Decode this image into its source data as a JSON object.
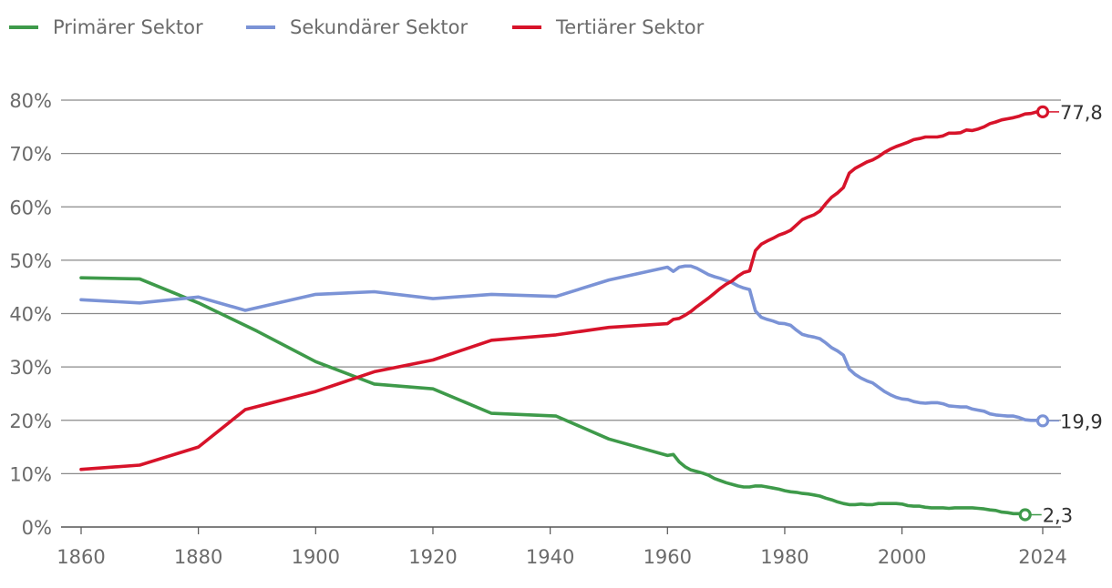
{
  "chart_data": {
    "type": "line",
    "title": "",
    "xlabel": "",
    "ylabel": "",
    "xlim": [
      1860,
      2024
    ],
    "ylim": [
      0,
      80
    ],
    "x_ticks": [
      "1860",
      "1880",
      "1900",
      "1920",
      "1940",
      "1960",
      "1980",
      "2000",
      "2024"
    ],
    "y_ticks": [
      "0%",
      "10%",
      "20%",
      "30%",
      "40%",
      "50%",
      "60%",
      "70%",
      "80%"
    ],
    "grid": "horizontal",
    "legend_position": "top-left",
    "series": [
      {
        "name": "Primärer Sektor",
        "color": "#3e9a4a",
        "end_label": "2,3",
        "points": [
          [
            1860,
            46.7
          ],
          [
            1870,
            46.5
          ],
          [
            1880,
            42
          ],
          [
            1890,
            36.7
          ],
          [
            1900,
            31
          ],
          [
            1910,
            26.8
          ],
          [
            1920,
            25.9
          ],
          [
            1930,
            21.3
          ],
          [
            1941,
            20.8
          ],
          [
            1950,
            16.5
          ],
          [
            1960,
            13.4
          ],
          [
            1961,
            13.6
          ],
          [
            1962,
            12.2
          ],
          [
            1963,
            11.3
          ],
          [
            1964,
            10.7
          ],
          [
            1965,
            10.4
          ],
          [
            1966,
            10.1
          ],
          [
            1967,
            9.7
          ],
          [
            1968,
            9.1
          ],
          [
            1969,
            8.7
          ],
          [
            1970,
            8.3
          ],
          [
            1971,
            8
          ],
          [
            1972,
            7.7
          ],
          [
            1973,
            7.5
          ],
          [
            1974,
            7.5
          ],
          [
            1975,
            7.7
          ],
          [
            1976,
            7.7
          ],
          [
            1977,
            7.5
          ],
          [
            1978,
            7.3
          ],
          [
            1979,
            7.1
          ],
          [
            1980,
            6.8
          ],
          [
            1981,
            6.6
          ],
          [
            1982,
            6.5
          ],
          [
            1983,
            6.3
          ],
          [
            1984,
            6.2
          ],
          [
            1985,
            6
          ],
          [
            1986,
            5.8
          ],
          [
            1987,
            5.4
          ],
          [
            1988,
            5.1
          ],
          [
            1989,
            4.7
          ],
          [
            1990,
            4.4
          ],
          [
            1991,
            4.2
          ],
          [
            1992,
            4.2
          ],
          [
            1993,
            4.3
          ],
          [
            1994,
            4.2
          ],
          [
            1995,
            4.2
          ],
          [
            1996,
            4.4
          ],
          [
            1997,
            4.4
          ],
          [
            1998,
            4.4
          ],
          [
            1999,
            4.4
          ],
          [
            2000,
            4.3
          ],
          [
            2001,
            4
          ],
          [
            2002,
            3.9
          ],
          [
            2003,
            3.9
          ],
          [
            2004,
            3.7
          ],
          [
            2005,
            3.6
          ],
          [
            2006,
            3.6
          ],
          [
            2007,
            3.6
          ],
          [
            2008,
            3.5
          ],
          [
            2009,
            3.6
          ],
          [
            2010,
            3.6
          ],
          [
            2011,
            3.6
          ],
          [
            2012,
            3.6
          ],
          [
            2013,
            3.5
          ],
          [
            2014,
            3.4
          ],
          [
            2015,
            3.2
          ],
          [
            2016,
            3.1
          ],
          [
            2017,
            2.8
          ],
          [
            2018,
            2.7
          ],
          [
            2019,
            2.5
          ],
          [
            2020,
            2.5
          ],
          [
            2021,
            2.3
          ]
        ]
      },
      {
        "name": "Sekundärer Sektor",
        "color": "#7b93d6",
        "end_label": "19,9",
        "points": [
          [
            1860,
            42.6
          ],
          [
            1870,
            42
          ],
          [
            1880,
            43.1
          ],
          [
            1888,
            40.6
          ],
          [
            1900,
            43.6
          ],
          [
            1910,
            44.1
          ],
          [
            1920,
            42.8
          ],
          [
            1930,
            43.6
          ],
          [
            1941,
            43.2
          ],
          [
            1950,
            46.3
          ],
          [
            1960,
            48.7
          ],
          [
            1961,
            47.9
          ],
          [
            1962,
            48.7
          ],
          [
            1963,
            48.9
          ],
          [
            1964,
            48.9
          ],
          [
            1965,
            48.5
          ],
          [
            1966,
            47.9
          ],
          [
            1967,
            47.3
          ],
          [
            1968,
            46.9
          ],
          [
            1969,
            46.6
          ],
          [
            1970,
            46.2
          ],
          [
            1971,
            45.8
          ],
          [
            1972,
            45.2
          ],
          [
            1973,
            44.8
          ],
          [
            1974,
            44.5
          ],
          [
            1975,
            40.5
          ],
          [
            1976,
            39.3
          ],
          [
            1977,
            38.9
          ],
          [
            1978,
            38.6
          ],
          [
            1979,
            38.2
          ],
          [
            1980,
            38.1
          ],
          [
            1981,
            37.8
          ],
          [
            1982,
            36.9
          ],
          [
            1983,
            36.1
          ],
          [
            1984,
            35.8
          ],
          [
            1985,
            35.6
          ],
          [
            1986,
            35.3
          ],
          [
            1987,
            34.5
          ],
          [
            1988,
            33.6
          ],
          [
            1989,
            33
          ],
          [
            1990,
            32.2
          ],
          [
            1991,
            29.6
          ],
          [
            1992,
            28.6
          ],
          [
            1993,
            27.9
          ],
          [
            1994,
            27.4
          ],
          [
            1995,
            27
          ],
          [
            1996,
            26.2
          ],
          [
            1997,
            25.4
          ],
          [
            1998,
            24.8
          ],
          [
            1999,
            24.3
          ],
          [
            2000,
            24
          ],
          [
            2001,
            23.9
          ],
          [
            2002,
            23.5
          ],
          [
            2003,
            23.3
          ],
          [
            2004,
            23.2
          ],
          [
            2005,
            23.3
          ],
          [
            2006,
            23.3
          ],
          [
            2007,
            23.1
          ],
          [
            2008,
            22.7
          ],
          [
            2009,
            22.6
          ],
          [
            2010,
            22.5
          ],
          [
            2011,
            22.5
          ],
          [
            2012,
            22.1
          ],
          [
            2013,
            21.9
          ],
          [
            2014,
            21.7
          ],
          [
            2015,
            21.2
          ],
          [
            2016,
            21
          ],
          [
            2017,
            20.9
          ],
          [
            2018,
            20.8
          ],
          [
            2019,
            20.8
          ],
          [
            2020,
            20.5
          ],
          [
            2021,
            20.1
          ],
          [
            2022,
            20
          ],
          [
            2023,
            20
          ],
          [
            2024,
            19.9
          ]
        ]
      },
      {
        "name": "Tertiärer Sektor",
        "color": "#d7132a",
        "end_label": "77,8",
        "points": [
          [
            1860,
            10.8
          ],
          [
            1870,
            11.6
          ],
          [
            1880,
            15
          ],
          [
            1888,
            22
          ],
          [
            1900,
            25.4
          ],
          [
            1910,
            29.1
          ],
          [
            1920,
            31.3
          ],
          [
            1930,
            35
          ],
          [
            1941,
            36
          ],
          [
            1950,
            37.4
          ],
          [
            1960,
            38.1
          ],
          [
            1961,
            38.9
          ],
          [
            1962,
            39.1
          ],
          [
            1963,
            39.7
          ],
          [
            1964,
            40.4
          ],
          [
            1965,
            41.3
          ],
          [
            1966,
            42.1
          ],
          [
            1967,
            42.9
          ],
          [
            1968,
            43.8
          ],
          [
            1969,
            44.7
          ],
          [
            1970,
            45.5
          ],
          [
            1971,
            46.1
          ],
          [
            1972,
            47
          ],
          [
            1973,
            47.7
          ],
          [
            1974,
            48
          ],
          [
            1975,
            51.8
          ],
          [
            1976,
            53
          ],
          [
            1977,
            53.6
          ],
          [
            1978,
            54.1
          ],
          [
            1979,
            54.7
          ],
          [
            1980,
            55.1
          ],
          [
            1981,
            55.6
          ],
          [
            1982,
            56.6
          ],
          [
            1983,
            57.6
          ],
          [
            1984,
            58.1
          ],
          [
            1985,
            58.5
          ],
          [
            1986,
            59.2
          ],
          [
            1987,
            60.6
          ],
          [
            1988,
            61.8
          ],
          [
            1989,
            62.6
          ],
          [
            1990,
            63.6
          ],
          [
            1991,
            66.3
          ],
          [
            1992,
            67.2
          ],
          [
            1993,
            67.8
          ],
          [
            1994,
            68.4
          ],
          [
            1995,
            68.8
          ],
          [
            1996,
            69.4
          ],
          [
            1997,
            70.2
          ],
          [
            1998,
            70.8
          ],
          [
            1999,
            71.3
          ],
          [
            2000,
            71.7
          ],
          [
            2001,
            72.1
          ],
          [
            2002,
            72.6
          ],
          [
            2003,
            72.8
          ],
          [
            2004,
            73.1
          ],
          [
            2005,
            73.1
          ],
          [
            2006,
            73.1
          ],
          [
            2007,
            73.3
          ],
          [
            2008,
            73.8
          ],
          [
            2009,
            73.8
          ],
          [
            2010,
            73.9
          ],
          [
            2011,
            74.4
          ],
          [
            2012,
            74.3
          ],
          [
            2013,
            74.6
          ],
          [
            2014,
            75
          ],
          [
            2015,
            75.6
          ],
          [
            2016,
            75.9
          ],
          [
            2017,
            76.3
          ],
          [
            2018,
            76.5
          ],
          [
            2019,
            76.7
          ],
          [
            2020,
            77
          ],
          [
            2021,
            77.4
          ],
          [
            2022,
            77.5
          ],
          [
            2023,
            77.8
          ],
          [
            2024,
            77.8
          ]
        ]
      }
    ]
  }
}
